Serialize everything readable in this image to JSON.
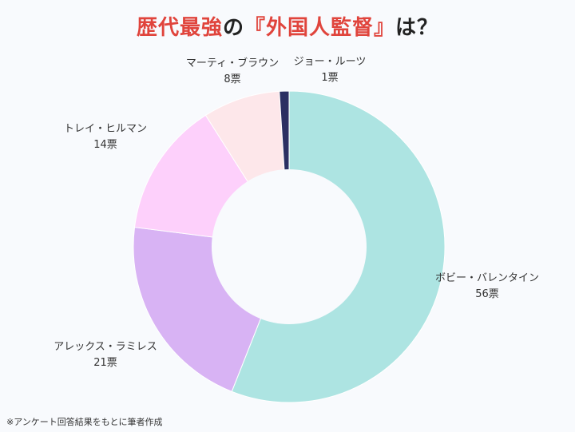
{
  "title": {
    "part1": "歴代最強",
    "part2": "の",
    "part3": "『外国人監督』",
    "part4": "は？"
  },
  "footnote": "※アンケート回答結果をもとに筆者作成",
  "chart_data": {
    "type": "pie",
    "donut": true,
    "unit": "票",
    "categories": [
      "ボビー・バレンタイン",
      "アレックス・ラミレス",
      "トレイ・ヒルマン",
      "マーティ・ブラウン",
      "ジョー・ルーツ"
    ],
    "values": [
      56,
      21,
      14,
      8,
      1
    ],
    "value_labels": [
      "56票",
      "21票",
      "14票",
      "8票",
      "1票"
    ],
    "colors": [
      "#ade4e2",
      "#d8b3f4",
      "#fdd0fb",
      "#fde7ea",
      "#2b2f62"
    ],
    "start": "top",
    "direction": "clockwise"
  }
}
